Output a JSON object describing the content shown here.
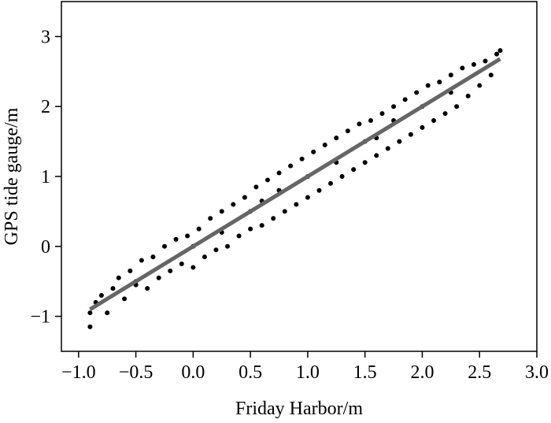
{
  "chart_data": {
    "type": "scatter",
    "x_label": "Friday Harbor/m",
    "y_label": "GPS tide gauge/m",
    "xlim": [
      -1.15,
      3.0
    ],
    "ylim": [
      -1.5,
      3.5
    ],
    "xticks": [
      {
        "value": -1.0,
        "label": "−1.0"
      },
      {
        "value": -0.5,
        "label": "−0.5"
      },
      {
        "value": 0.0,
        "label": "0.0"
      },
      {
        "value": 0.5,
        "label": "0.5"
      },
      {
        "value": 1.0,
        "label": "1.0"
      },
      {
        "value": 1.5,
        "label": "1.5"
      },
      {
        "value": 2.0,
        "label": "2.0"
      },
      {
        "value": 2.5,
        "label": "2.5"
      },
      {
        "value": 3.0,
        "label": "3.0"
      }
    ],
    "yticks": [
      {
        "value": -1,
        "label": "−1"
      },
      0,
      1,
      2,
      3
    ],
    "series": [
      {
        "type": "scatter",
        "color": "#000000",
        "x": [
          -0.9,
          -0.9,
          -0.85,
          -0.8,
          -0.75,
          -0.7,
          -0.65,
          -0.6,
          -0.55,
          -0.5,
          -0.45,
          -0.4,
          -0.35,
          -0.3,
          -0.25,
          -0.2,
          -0.15,
          -0.1,
          -0.05,
          0.0,
          0.05,
          0.1,
          0.15,
          0.2,
          0.25,
          0.3,
          0.35,
          0.4,
          0.45,
          0.5,
          0.55,
          0.6,
          0.65,
          0.7,
          0.75,
          0.8,
          0.85,
          0.9,
          0.95,
          1.0,
          1.05,
          1.1,
          1.15,
          1.2,
          1.25,
          1.3,
          1.35,
          1.4,
          1.45,
          1.5,
          1.55,
          1.6,
          1.65,
          1.7,
          1.75,
          1.8,
          1.85,
          1.9,
          1.95,
          2.0,
          2.05,
          2.1,
          2.15,
          2.2,
          2.25,
          2.3,
          2.35,
          2.4,
          2.45,
          2.5,
          2.55,
          2.6,
          2.65,
          2.68,
          0.0,
          0.5,
          1.0,
          1.5,
          2.0,
          -0.5,
          0.25,
          0.75,
          1.25,
          1.75,
          2.25,
          0.6,
          1.6
        ],
        "values": [
          -1.15,
          -0.95,
          -0.8,
          -0.7,
          -0.95,
          -0.6,
          -0.45,
          -0.75,
          -0.35,
          -0.55,
          -0.2,
          -0.6,
          -0.15,
          -0.45,
          0.0,
          -0.35,
          0.1,
          -0.25,
          0.15,
          -0.3,
          0.25,
          -0.15,
          0.4,
          -0.05,
          0.5,
          0.0,
          0.6,
          0.15,
          0.7,
          0.25,
          0.85,
          0.3,
          0.95,
          0.4,
          1.05,
          0.5,
          1.15,
          0.6,
          1.25,
          0.7,
          1.35,
          0.8,
          1.45,
          0.9,
          1.55,
          1.0,
          1.65,
          1.1,
          1.75,
          1.2,
          1.8,
          1.3,
          1.9,
          1.4,
          2.0,
          1.5,
          2.1,
          1.6,
          2.2,
          1.7,
          2.3,
          1.8,
          2.35,
          1.9,
          2.45,
          2.0,
          2.55,
          2.15,
          2.6,
          2.3,
          2.65,
          2.45,
          2.75,
          2.8,
          0.0,
          0.5,
          1.0,
          1.5,
          2.0,
          -0.5,
          0.2,
          0.8,
          1.2,
          1.8,
          2.2,
          0.65,
          1.55
        ]
      },
      {
        "type": "line",
        "color": "#666666",
        "x": [
          -0.9,
          2.68
        ],
        "values": [
          -0.9,
          2.68
        ]
      }
    ]
  }
}
